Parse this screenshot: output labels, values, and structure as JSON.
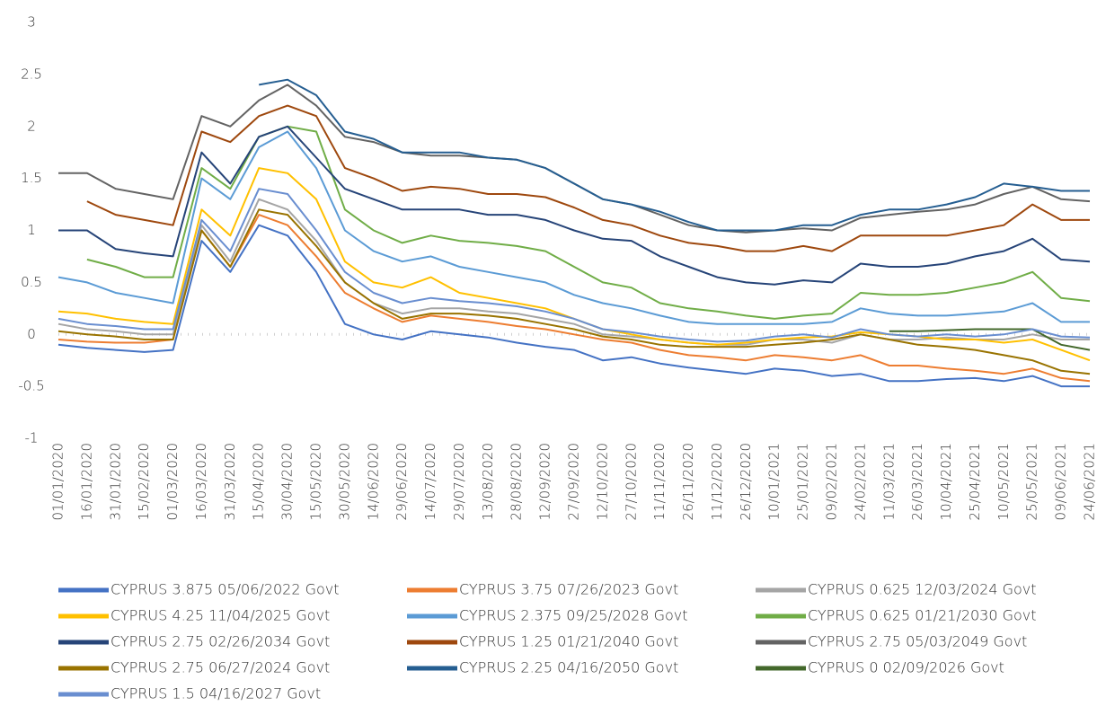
{
  "chart_data": {
    "type": "line",
    "x": [
      "01/01/2020",
      "16/01/2020",
      "31/01/2020",
      "15/02/2020",
      "01/03/2020",
      "16/03/2020",
      "31/03/2020",
      "15/04/2020",
      "30/04/2020",
      "15/05/2020",
      "30/05/2020",
      "14/06/2020",
      "29/06/2020",
      "14/07/2020",
      "29/07/2020",
      "13/08/2020",
      "28/08/2020",
      "12/09/2020",
      "27/09/2020",
      "12/10/2020",
      "27/10/2020",
      "11/11/2020",
      "26/11/2020",
      "11/12/2020",
      "26/12/2020",
      "10/01/2021",
      "25/01/2021",
      "09/02/2021",
      "24/02/2021",
      "11/03/2021",
      "26/03/2021",
      "10/04/2021",
      "25/04/2021",
      "10/05/2021",
      "25/05/2021",
      "09/06/2021",
      "24/06/2021"
    ],
    "ylim": [
      -1,
      3
    ],
    "yticks": [
      -1,
      -0.5,
      0,
      0.5,
      1,
      1.5,
      2,
      2.5,
      3
    ],
    "series": [
      {
        "name": "CYPRUS 3.875 05/06/2022 Govt",
        "color": "#4472c4",
        "values": [
          -0.1,
          -0.13,
          -0.15,
          -0.17,
          -0.15,
          0.9,
          0.6,
          1.05,
          0.95,
          0.6,
          0.1,
          0,
          -0.05,
          0.03,
          0,
          -0.03,
          -0.08,
          -0.12,
          -0.15,
          -0.25,
          -0.22,
          -0.28,
          -0.32,
          -0.35,
          -0.38,
          -0.33,
          -0.35,
          -0.4,
          -0.38,
          -0.45,
          -0.45,
          -0.43,
          -0.42,
          -0.45,
          -0.4,
          -0.5,
          -0.5
        ]
      },
      {
        "name": "CYPRUS 3.75 07/26/2023 Govt",
        "color": "#ed7d31",
        "values": [
          -0.05,
          -0.07,
          -0.08,
          -0.08,
          -0.05,
          1.0,
          0.65,
          1.15,
          1.05,
          0.75,
          0.4,
          0.25,
          0.12,
          0.18,
          0.15,
          0.12,
          0.08,
          0.05,
          0,
          -0.05,
          -0.08,
          -0.15,
          -0.2,
          -0.22,
          -0.25,
          -0.2,
          -0.22,
          -0.25,
          -0.2,
          -0.3,
          -0.3,
          -0.33,
          -0.35,
          -0.38,
          -0.33,
          -0.42,
          -0.45
        ]
      },
      {
        "name": "CYPRUS 0.625 12/03/2024 Govt",
        "color": "#a5a5a5",
        "values": [
          0.1,
          0.05,
          0.03,
          0,
          0,
          1.05,
          0.7,
          1.3,
          1.2,
          0.9,
          0.5,
          0.3,
          0.2,
          0.25,
          0.25,
          0.22,
          0.2,
          0.15,
          0.1,
          0,
          -0.02,
          -0.05,
          -0.08,
          -0.1,
          -0.1,
          -0.05,
          -0.05,
          -0.08,
          0,
          -0.05,
          -0.05,
          -0.03,
          -0.05,
          -0.05,
          0,
          -0.05,
          -0.05
        ]
      },
      {
        "name": "CYPRUS 4.25 11/04/2025 Govt",
        "color": "#ffc000",
        "values": [
          0.22,
          0.2,
          0.15,
          0.12,
          0.1,
          1.2,
          0.95,
          1.6,
          1.55,
          1.3,
          0.7,
          0.5,
          0.45,
          0.55,
          0.4,
          0.35,
          0.3,
          0.25,
          0.15,
          0.05,
          0,
          -0.05,
          -0.08,
          -0.1,
          -0.08,
          -0.05,
          -0.03,
          -0.02,
          0.02,
          0,
          -0.02,
          -0.05,
          -0.05,
          -0.08,
          -0.05,
          -0.15,
          -0.25
        ]
      },
      {
        "name": "CYPRUS 2.375 09/25/2028 Govt",
        "color": "#5b9bd5",
        "values": [
          0.55,
          0.5,
          0.4,
          0.35,
          0.3,
          1.5,
          1.3,
          1.8,
          1.95,
          1.6,
          1.0,
          0.8,
          0.7,
          0.75,
          0.65,
          0.6,
          0.55,
          0.5,
          0.38,
          0.3,
          0.25,
          0.18,
          0.12,
          0.1,
          0.1,
          0.1,
          0.1,
          0.12,
          0.25,
          0.2,
          0.18,
          0.18,
          0.2,
          0.22,
          0.3,
          0.12,
          0.12
        ]
      },
      {
        "name": "CYPRUS 0.625 01/21/2030 Govt",
        "color": "#70ad47",
        "values": [
          null,
          0.72,
          0.65,
          0.55,
          0.55,
          1.6,
          1.4,
          1.9,
          2.0,
          1.95,
          1.2,
          1.0,
          0.88,
          0.95,
          0.9,
          0.88,
          0.85,
          0.8,
          0.65,
          0.5,
          0.45,
          0.3,
          0.25,
          0.22,
          0.18,
          0.15,
          0.18,
          0.2,
          0.4,
          0.38,
          0.38,
          0.4,
          0.45,
          0.5,
          0.6,
          0.35,
          0.32
        ]
      },
      {
        "name": "CYPRUS 2.75 02/26/2034 Govt",
        "color": "#264478",
        "values": [
          1.0,
          1.0,
          0.82,
          0.78,
          0.75,
          1.75,
          1.45,
          1.9,
          2.0,
          1.7,
          1.4,
          1.3,
          1.2,
          1.2,
          1.2,
          1.15,
          1.15,
          1.1,
          1.0,
          0.92,
          0.9,
          0.75,
          0.65,
          0.55,
          0.5,
          0.48,
          0.52,
          0.5,
          0.68,
          0.65,
          0.65,
          0.68,
          0.75,
          0.8,
          0.92,
          0.72,
          0.7
        ]
      },
      {
        "name": "CYPRUS 1.25 01/21/2040 Govt",
        "color": "#9e480e",
        "values": [
          null,
          1.28,
          1.15,
          1.1,
          1.05,
          1.95,
          1.85,
          2.1,
          2.2,
          2.1,
          1.6,
          1.5,
          1.38,
          1.42,
          1.4,
          1.35,
          1.35,
          1.32,
          1.22,
          1.1,
          1.05,
          0.95,
          0.88,
          0.85,
          0.8,
          0.8,
          0.85,
          0.8,
          0.95,
          0.95,
          0.95,
          0.95,
          1.0,
          1.05,
          1.25,
          1.1,
          1.1
        ]
      },
      {
        "name": "CYPRUS 2.75 05/03/2049 Govt",
        "color": "#636363",
        "values": [
          1.55,
          1.55,
          1.4,
          1.35,
          1.3,
          2.1,
          2.0,
          2.25,
          2.4,
          2.2,
          1.9,
          1.85,
          1.75,
          1.72,
          1.72,
          1.7,
          1.68,
          1.6,
          1.45,
          1.3,
          1.25,
          1.15,
          1.05,
          1.0,
          0.98,
          1.0,
          1.02,
          1.0,
          1.12,
          1.15,
          1.18,
          1.2,
          1.25,
          1.35,
          1.42,
          1.3,
          1.28
        ]
      },
      {
        "name": "CYPRUS 2.75 06/27/2024 Govt",
        "color": "#997300",
        "values": [
          0.03,
          0,
          -0.02,
          -0.05,
          -0.05,
          1.0,
          0.65,
          1.2,
          1.15,
          0.85,
          0.5,
          0.3,
          0.15,
          0.2,
          0.2,
          0.18,
          0.15,
          0.1,
          0.05,
          -0.02,
          -0.05,
          -0.1,
          -0.12,
          -0.12,
          -0.12,
          -0.1,
          -0.08,
          -0.05,
          0,
          -0.05,
          -0.1,
          -0.12,
          -0.15,
          -0.2,
          -0.25,
          -0.35,
          -0.38
        ]
      },
      {
        "name": "CYPRUS 2.25 04/16/2050 Govt",
        "color": "#255e91",
        "values": [
          null,
          null,
          null,
          null,
          null,
          null,
          null,
          2.4,
          2.45,
          2.3,
          1.95,
          1.88,
          1.75,
          1.75,
          1.75,
          1.7,
          1.68,
          1.6,
          1.45,
          1.3,
          1.25,
          1.18,
          1.08,
          1.0,
          1.0,
          1.0,
          1.05,
          1.05,
          1.15,
          1.2,
          1.2,
          1.25,
          1.32,
          1.45,
          1.42,
          1.38,
          1.38
        ]
      },
      {
        "name": "CYPRUS 0 02/09/2026 Govt",
        "color": "#43682b",
        "values": [
          null,
          null,
          null,
          null,
          null,
          null,
          null,
          null,
          null,
          null,
          null,
          null,
          null,
          null,
          null,
          null,
          null,
          null,
          null,
          null,
          null,
          null,
          null,
          null,
          null,
          null,
          null,
          null,
          null,
          0.03,
          0.03,
          0.04,
          0.05,
          0.05,
          0.05,
          -0.1,
          -0.15
        ]
      },
      {
        "name": "CYPRUS 1.5 04/16/2027 Govt",
        "color": "#698ed0",
        "values": [
          0.15,
          0.1,
          0.08,
          0.05,
          0.05,
          1.1,
          0.8,
          1.4,
          1.35,
          1.0,
          0.6,
          0.4,
          0.3,
          0.35,
          0.32,
          0.3,
          0.27,
          0.22,
          0.15,
          0.05,
          0.02,
          -0.02,
          -0.05,
          -0.07,
          -0.06,
          -0.02,
          0,
          -0.03,
          0.05,
          0,
          -0.02,
          0,
          -0.02,
          0,
          0.05,
          -0.02,
          -0.03
        ]
      }
    ]
  }
}
